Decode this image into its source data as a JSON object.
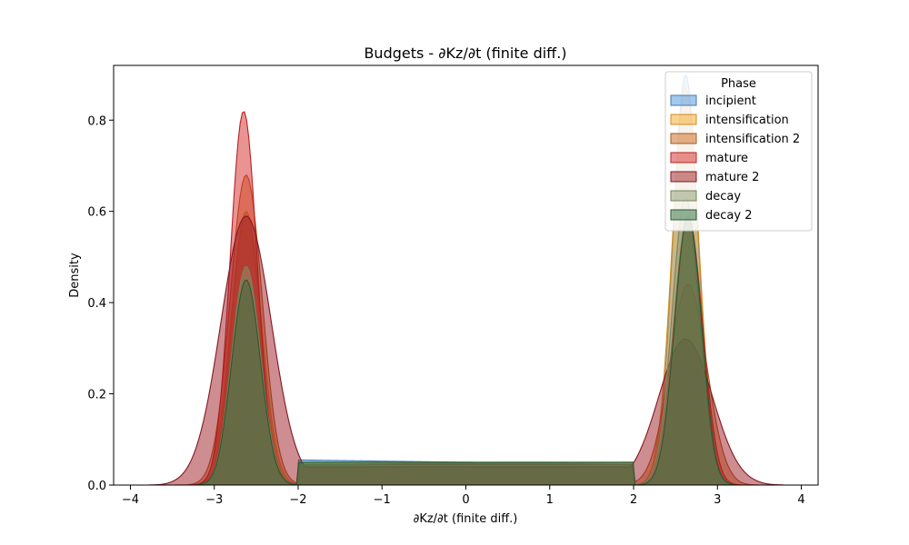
{
  "chart_data": {
    "type": "area",
    "title": "Budgets - ∂Kz/∂t (finite diff.)",
    "xlabel": "∂Kz/∂t (finite diff.)",
    "ylabel": "Density",
    "xlim": [
      -4.2,
      4.2
    ],
    "ylim": [
      0,
      0.92
    ],
    "xticks": [
      -4,
      -3,
      -2,
      -1,
      0,
      1,
      2,
      3,
      4
    ],
    "xtick_labels": [
      "−4",
      "−3",
      "−2",
      "−1",
      "0",
      "1",
      "2",
      "3",
      "4"
    ],
    "yticks": [
      0.0,
      0.2,
      0.4,
      0.6,
      0.8
    ],
    "ytick_labels": [
      "0.0",
      "0.2",
      "0.4",
      "0.6",
      "0.8"
    ],
    "grid": false,
    "legend": {
      "title": "Phase",
      "placement": "top-right"
    },
    "series": [
      {
        "name": "incipient",
        "color": "#4a90d9",
        "range": [
          -3.2,
          3.2
        ],
        "peaks": [
          [
            -2.62,
            0.6,
            0.17
          ],
          [
            2.62,
            0.9,
            0.15
          ]
        ],
        "plateau": [
          0.055,
          0.045
        ]
      },
      {
        "name": "intensification",
        "color": "#f5a623",
        "range": [
          -3.3,
          3.3
        ],
        "peaks": [
          [
            -2.62,
            0.6,
            0.18
          ],
          [
            2.62,
            0.87,
            0.16
          ]
        ],
        "plateau": [
          0.05,
          0.05
        ]
      },
      {
        "name": "intensification 2",
        "color": "#c8651b",
        "range": [
          -3.5,
          3.5
        ],
        "peaks": [
          [
            -2.62,
            0.68,
            0.19
          ],
          [
            2.65,
            0.44,
            0.22
          ]
        ],
        "plateau": [
          0.045,
          0.045
        ]
      },
      {
        "name": "mature",
        "color": "#d62728",
        "range": [
          -3.3,
          3.3
        ],
        "peaks": [
          [
            -2.65,
            0.82,
            0.16
          ],
          [
            2.65,
            0.59,
            0.17
          ]
        ],
        "plateau": [
          0.045,
          0.045
        ]
      },
      {
        "name": "mature 2",
        "color": "#9b1c24",
        "range": [
          -3.8,
          3.8
        ],
        "peaks": [
          [
            -2.62,
            0.59,
            0.3
          ],
          [
            2.62,
            0.32,
            0.32
          ]
        ],
        "plateau": [
          0.04,
          0.04
        ]
      },
      {
        "name": "decay",
        "color": "#8a9a6e",
        "range": [
          -3.2,
          3.2
        ],
        "peaks": [
          [
            -2.62,
            0.48,
            0.17
          ],
          [
            2.62,
            0.63,
            0.16
          ]
        ],
        "plateau": [
          0.045,
          0.05
        ]
      },
      {
        "name": "decay 2",
        "color": "#2e6b3c",
        "range": [
          -3.2,
          3.2
        ],
        "peaks": [
          [
            -2.62,
            0.45,
            0.17
          ],
          [
            2.65,
            0.59,
            0.16
          ]
        ],
        "plateau": [
          0.05,
          0.05
        ]
      }
    ]
  }
}
